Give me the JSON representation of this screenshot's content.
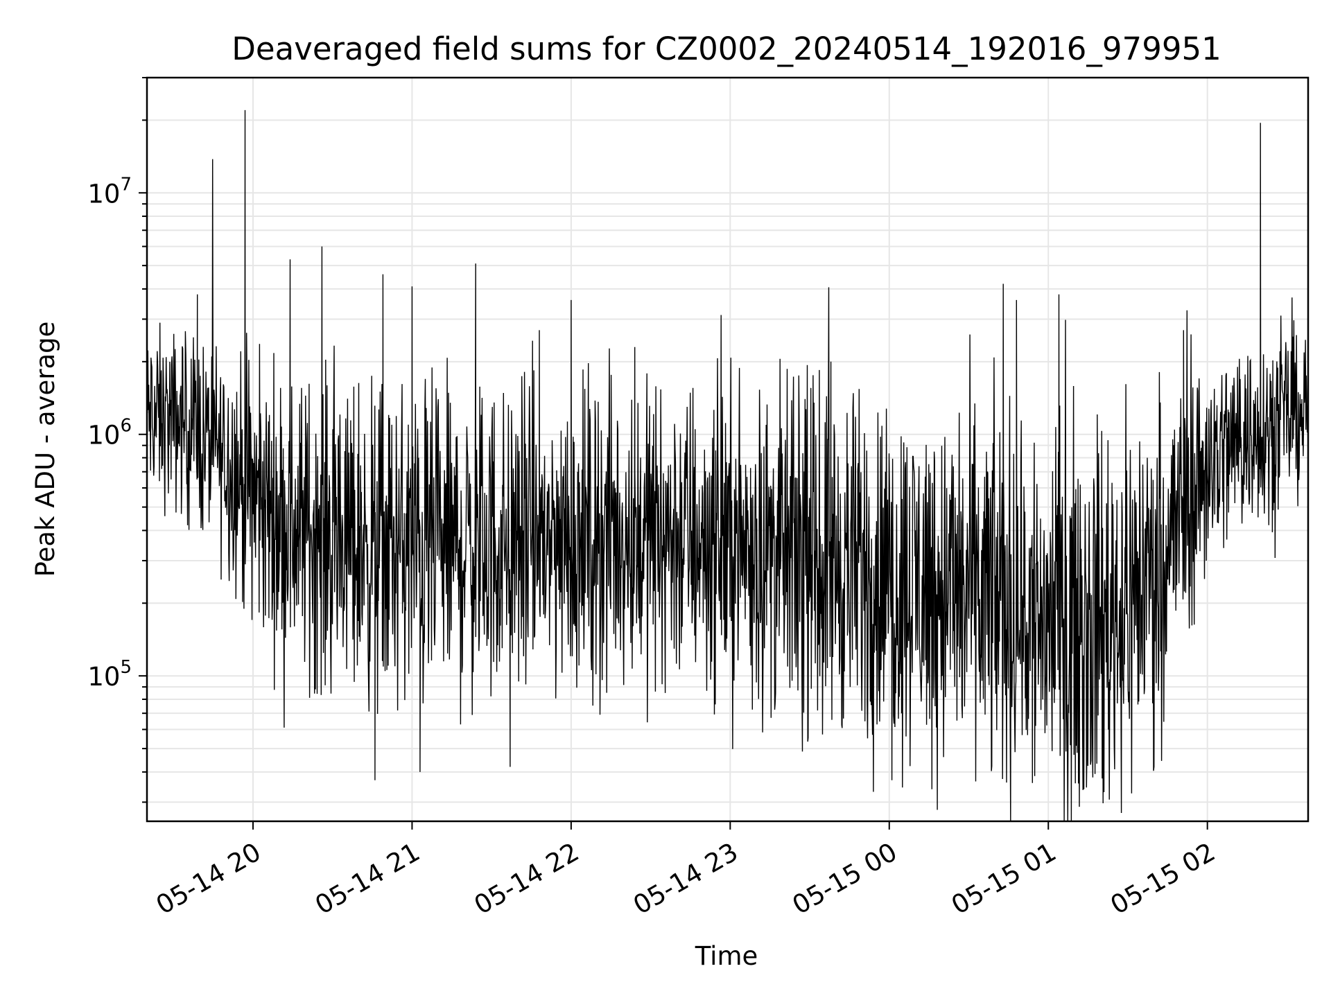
{
  "chart_data": {
    "type": "line",
    "title": "Deaveraged field sums for CZ0002_20240514_192016_979951",
    "xlabel": "Time",
    "ylabel": "Peak ADU - average",
    "yscale": "log",
    "xlim": [
      "2024-05-14 19:20",
      "2024-05-15 02:38"
    ],
    "ylim": [
      25000,
      30000000
    ],
    "grid": true,
    "legend": "none",
    "line_color": "#000000",
    "x_ticks": [
      {
        "time": "2024-05-14 20:00",
        "label": "05-14 20"
      },
      {
        "time": "2024-05-14 21:00",
        "label": "05-14 21"
      },
      {
        "time": "2024-05-14 22:00",
        "label": "05-14 22"
      },
      {
        "time": "2024-05-14 23:00",
        "label": "05-14 23"
      },
      {
        "time": "2024-05-15 00:00",
        "label": "05-15 00"
      },
      {
        "time": "2024-05-15 01:00",
        "label": "05-15 01"
      },
      {
        "time": "2024-05-15 02:00",
        "label": "05-15 02"
      }
    ],
    "y_ticks": [
      {
        "value": 100000,
        "base": "10",
        "exp": "5"
      },
      {
        "value": 1000000,
        "base": "10",
        "exp": "6"
      },
      {
        "value": 10000000,
        "base": "10",
        "exp": "7"
      }
    ],
    "series": [
      {
        "x": [
          "2024-05-14 19:20",
          "2024-05-14 19:35",
          "2024-05-14 19:50",
          "2024-05-14 20:00",
          "2024-05-14 20:15",
          "2024-05-14 20:30",
          "2024-05-14 20:45",
          "2024-05-14 21:00",
          "2024-05-14 21:15",
          "2024-05-14 21:30",
          "2024-05-14 21:45",
          "2024-05-14 22:00",
          "2024-05-14 22:15",
          "2024-05-14 22:30",
          "2024-05-14 22:45",
          "2024-05-14 23:00",
          "2024-05-14 23:15",
          "2024-05-14 23:30",
          "2024-05-14 23:45",
          "2024-05-15 00:00",
          "2024-05-15 00:15",
          "2024-05-15 00:30",
          "2024-05-15 00:45",
          "2024-05-15 01:00",
          "2024-05-15 01:15",
          "2024-05-15 01:30",
          "2024-05-15 01:45",
          "2024-05-15 02:00",
          "2024-05-15 02:15",
          "2024-05-15 02:38"
        ],
        "y": [
          1200000,
          1100000,
          800000,
          550000,
          420000,
          380000,
          350000,
          330000,
          340000,
          350000,
          360000,
          370000,
          380000,
          390000,
          380000,
          360000,
          330000,
          300000,
          280000,
          260000,
          240000,
          220000,
          200000,
          180000,
          170000,
          200000,
          350000,
          750000,
          1000000,
          1300000
        ]
      },
      {
        "spikes": [
          {
            "x": "2024-05-14 19:39",
            "y": 3800000
          },
          {
            "x": "2024-05-14 19:57",
            "y": 22000000
          },
          {
            "x": "2024-05-14 20:14",
            "y": 5300000
          },
          {
            "x": "2024-05-14 20:26",
            "y": 6000000
          },
          {
            "x": "2024-05-14 20:49",
            "y": 4600000
          },
          {
            "x": "2024-05-14 21:00",
            "y": 4100000
          },
          {
            "x": "2024-05-14 21:24",
            "y": 5100000
          },
          {
            "x": "2024-05-14 21:48",
            "y": 2700000
          },
          {
            "x": "2024-05-14 22:00",
            "y": 3600000
          },
          {
            "x": "2024-05-14 22:24",
            "y": 2300000
          },
          {
            "x": "2024-05-14 23:38",
            "y": 2000000
          },
          {
            "x": "2024-05-15 00:43",
            "y": 4200000
          },
          {
            "x": "2024-05-15 00:48",
            "y": 3600000
          },
          {
            "x": "2024-05-15 01:04",
            "y": 3800000
          },
          {
            "x": "2024-05-15 01:51",
            "y": 2700000
          },
          {
            "x": "2024-05-15 02:20",
            "y": 19500000
          },
          {
            "x": "2024-05-14 20:46",
            "y": 37000
          },
          {
            "x": "2024-05-14 21:03",
            "y": 40000
          },
          {
            "x": "2024-05-14 21:37",
            "y": 42000
          },
          {
            "x": "2024-05-15 00:01",
            "y": 37000
          },
          {
            "x": "2024-05-15 00:54",
            "y": 36000
          },
          {
            "x": "2024-05-15 01:21",
            "y": 33000
          }
        ]
      }
    ]
  }
}
